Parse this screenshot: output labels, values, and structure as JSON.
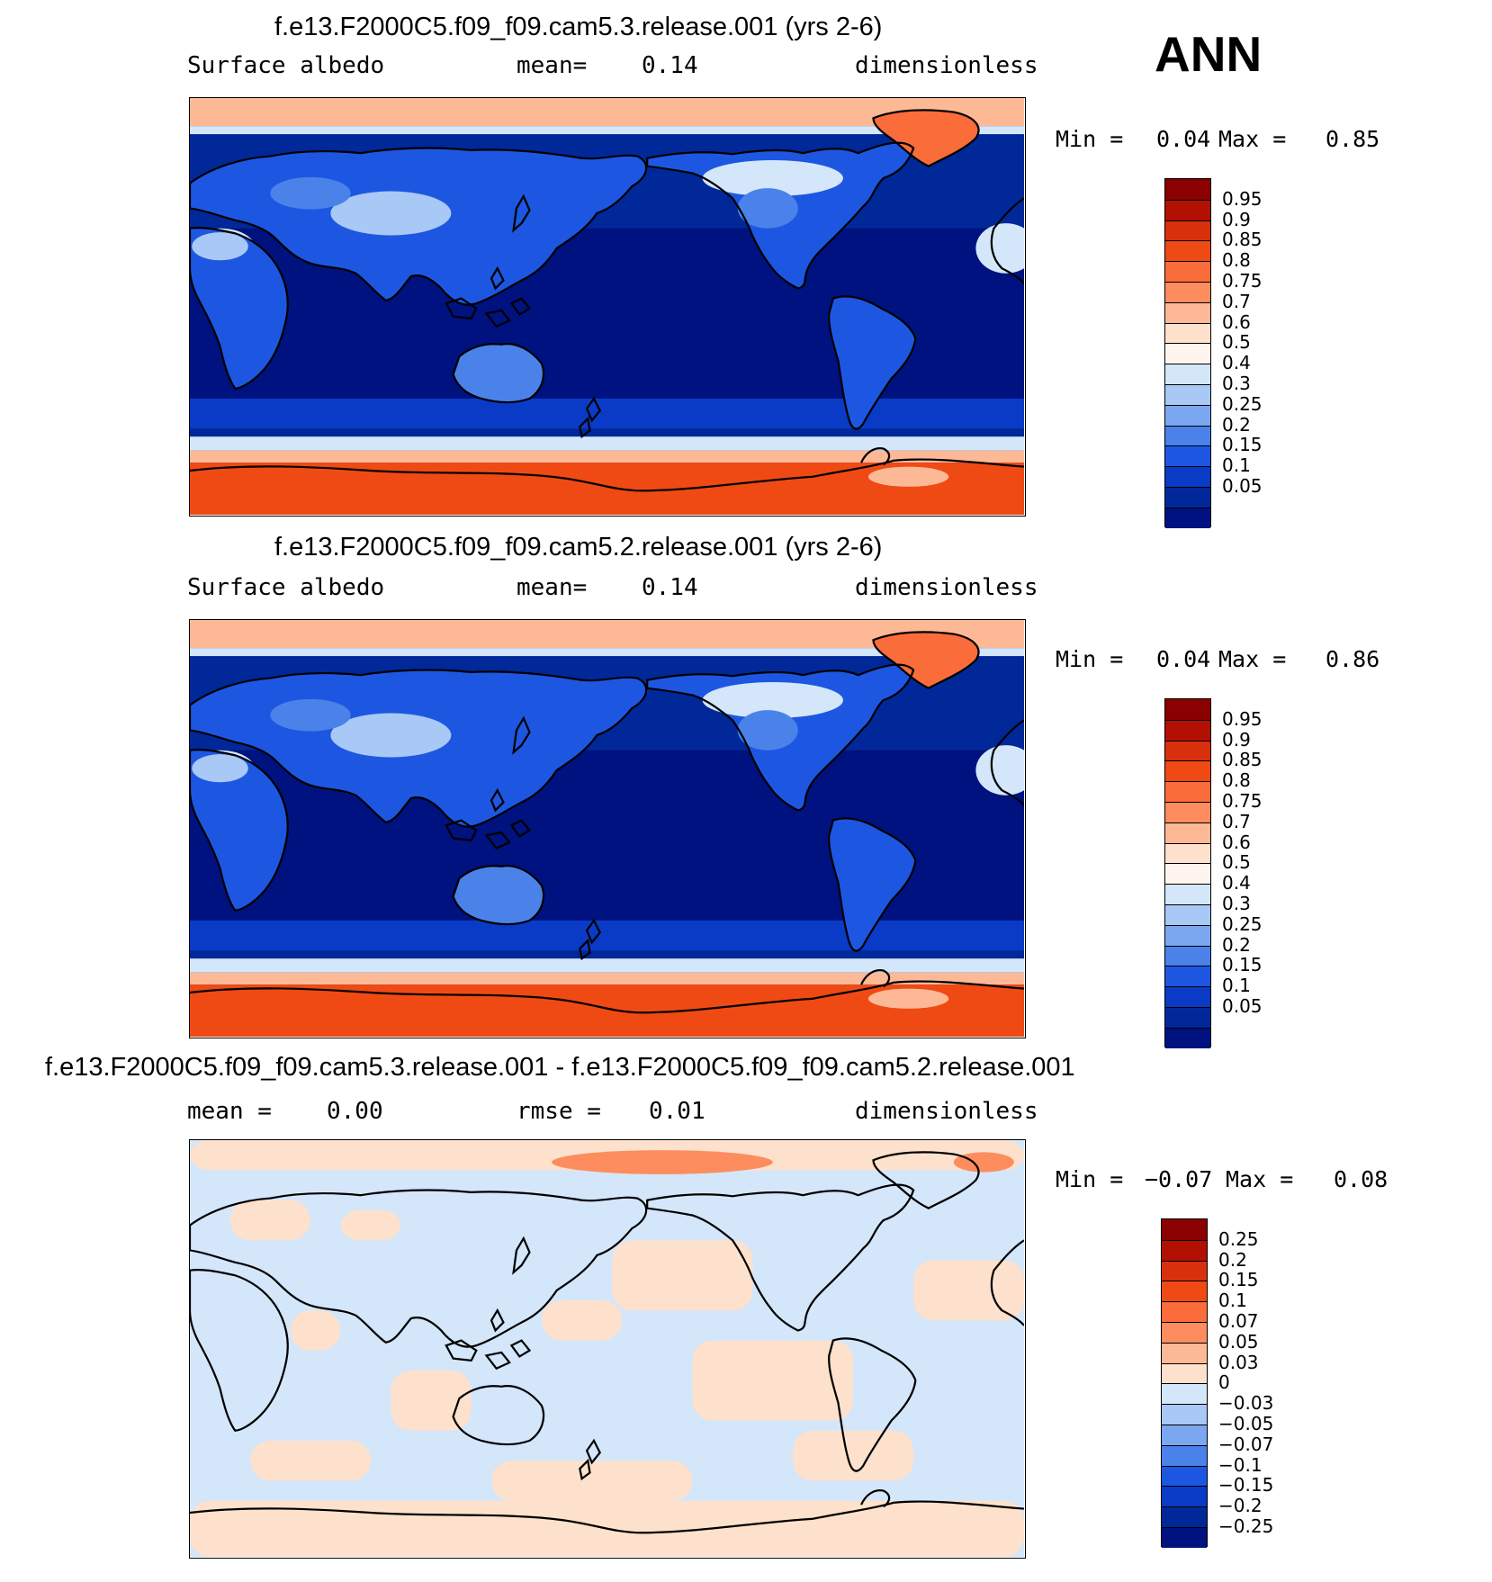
{
  "season": "ANN",
  "panels": [
    {
      "title": "f.e13.F2000C5.f09_f09.cam5.3.release.001 (yrs 2-6)",
      "left_label": "Surface albedo",
      "center_label": "mean=",
      "center_value": "0.14",
      "right_label": "dimensionless",
      "min_label": "Min =",
      "min_value": "0.04",
      "max_label": "Max =",
      "max_value": "0.85",
      "colorbar_levels": [
        "0.95",
        "0.9",
        "0.85",
        "0.8",
        "0.75",
        "0.7",
        "0.6",
        "0.5",
        "0.4",
        "0.3",
        "0.25",
        "0.2",
        "0.15",
        "0.1",
        "0.05"
      ],
      "colorbar_colors": [
        "#8b0000",
        "#b31004",
        "#d8300c",
        "#f04a14",
        "#fa6c3a",
        "#fd8d5e",
        "#fdb996",
        "#fde1cc",
        "#fff5ee",
        "#d4e6fa",
        "#a8c8f5",
        "#7aa7ef",
        "#4a82ea",
        "#1d57e1",
        "#0a3bc6",
        "#002899",
        "#00127f"
      ]
    },
    {
      "title": "f.e13.F2000C5.f09_f09.cam5.2.release.001 (yrs 2-6)",
      "left_label": "Surface albedo",
      "center_label": "mean=",
      "center_value": "0.14",
      "right_label": "dimensionless",
      "min_label": "Min =",
      "min_value": "0.04",
      "max_label": "Max =",
      "max_value": "0.86",
      "colorbar_levels": [
        "0.95",
        "0.9",
        "0.85",
        "0.8",
        "0.75",
        "0.7",
        "0.6",
        "0.5",
        "0.4",
        "0.3",
        "0.25",
        "0.2",
        "0.15",
        "0.1",
        "0.05"
      ],
      "colorbar_colors": [
        "#8b0000",
        "#b31004",
        "#d8300c",
        "#f04a14",
        "#fa6c3a",
        "#fd8d5e",
        "#fdb996",
        "#fde1cc",
        "#fff5ee",
        "#d4e6fa",
        "#a8c8f5",
        "#7aa7ef",
        "#4a82ea",
        "#1d57e1",
        "#0a3bc6",
        "#002899",
        "#00127f"
      ]
    },
    {
      "title": "f.e13.F2000C5.f09_f09.cam5.3.release.001 - f.e13.F2000C5.f09_f09.cam5.2.release.001",
      "left_label": "mean =",
      "left_value": "0.00",
      "center_label": "rmse =",
      "center_value": "0.01",
      "right_label": "dimensionless",
      "min_label": "Min =",
      "min_value": "−0.07",
      "max_label": "Max =",
      "max_value": "0.08",
      "colorbar_levels": [
        "0.25",
        "0.2",
        "0.15",
        "0.1",
        "0.07",
        "0.05",
        "0.03",
        "0",
        "−0.03",
        "−0.05",
        "−0.07",
        "−0.1",
        "−0.15",
        "−0.2",
        "−0.25"
      ],
      "colorbar_colors": [
        "#8b0000",
        "#b31004",
        "#d8300c",
        "#f04a14",
        "#fa6c3a",
        "#fd8d5e",
        "#fdb996",
        "#fde1cc",
        "#d4e6fa",
        "#a8c8f5",
        "#7aa7ef",
        "#4a82ea",
        "#1d57e1",
        "#0a3bc6",
        "#002899",
        "#00127f"
      ]
    }
  ],
  "map_colors": {
    "ocean_deep": "#00127f",
    "ocean_mid": "#002899",
    "ocean_shelf": "#0a3bc6",
    "land_low": "#1d57e1",
    "land_mid": "#4a82ea",
    "land_high": "#a8c8f5",
    "snow_light": "#d4e6fa",
    "ice_pale": "#fdb996",
    "ice": "#fa6c3a",
    "ice_sheet": "#f04a14",
    "diff_pos": "#fde1cc",
    "diff_neg": "#d4e6fa",
    "diff_pos_strong": "#fd8d5e"
  }
}
